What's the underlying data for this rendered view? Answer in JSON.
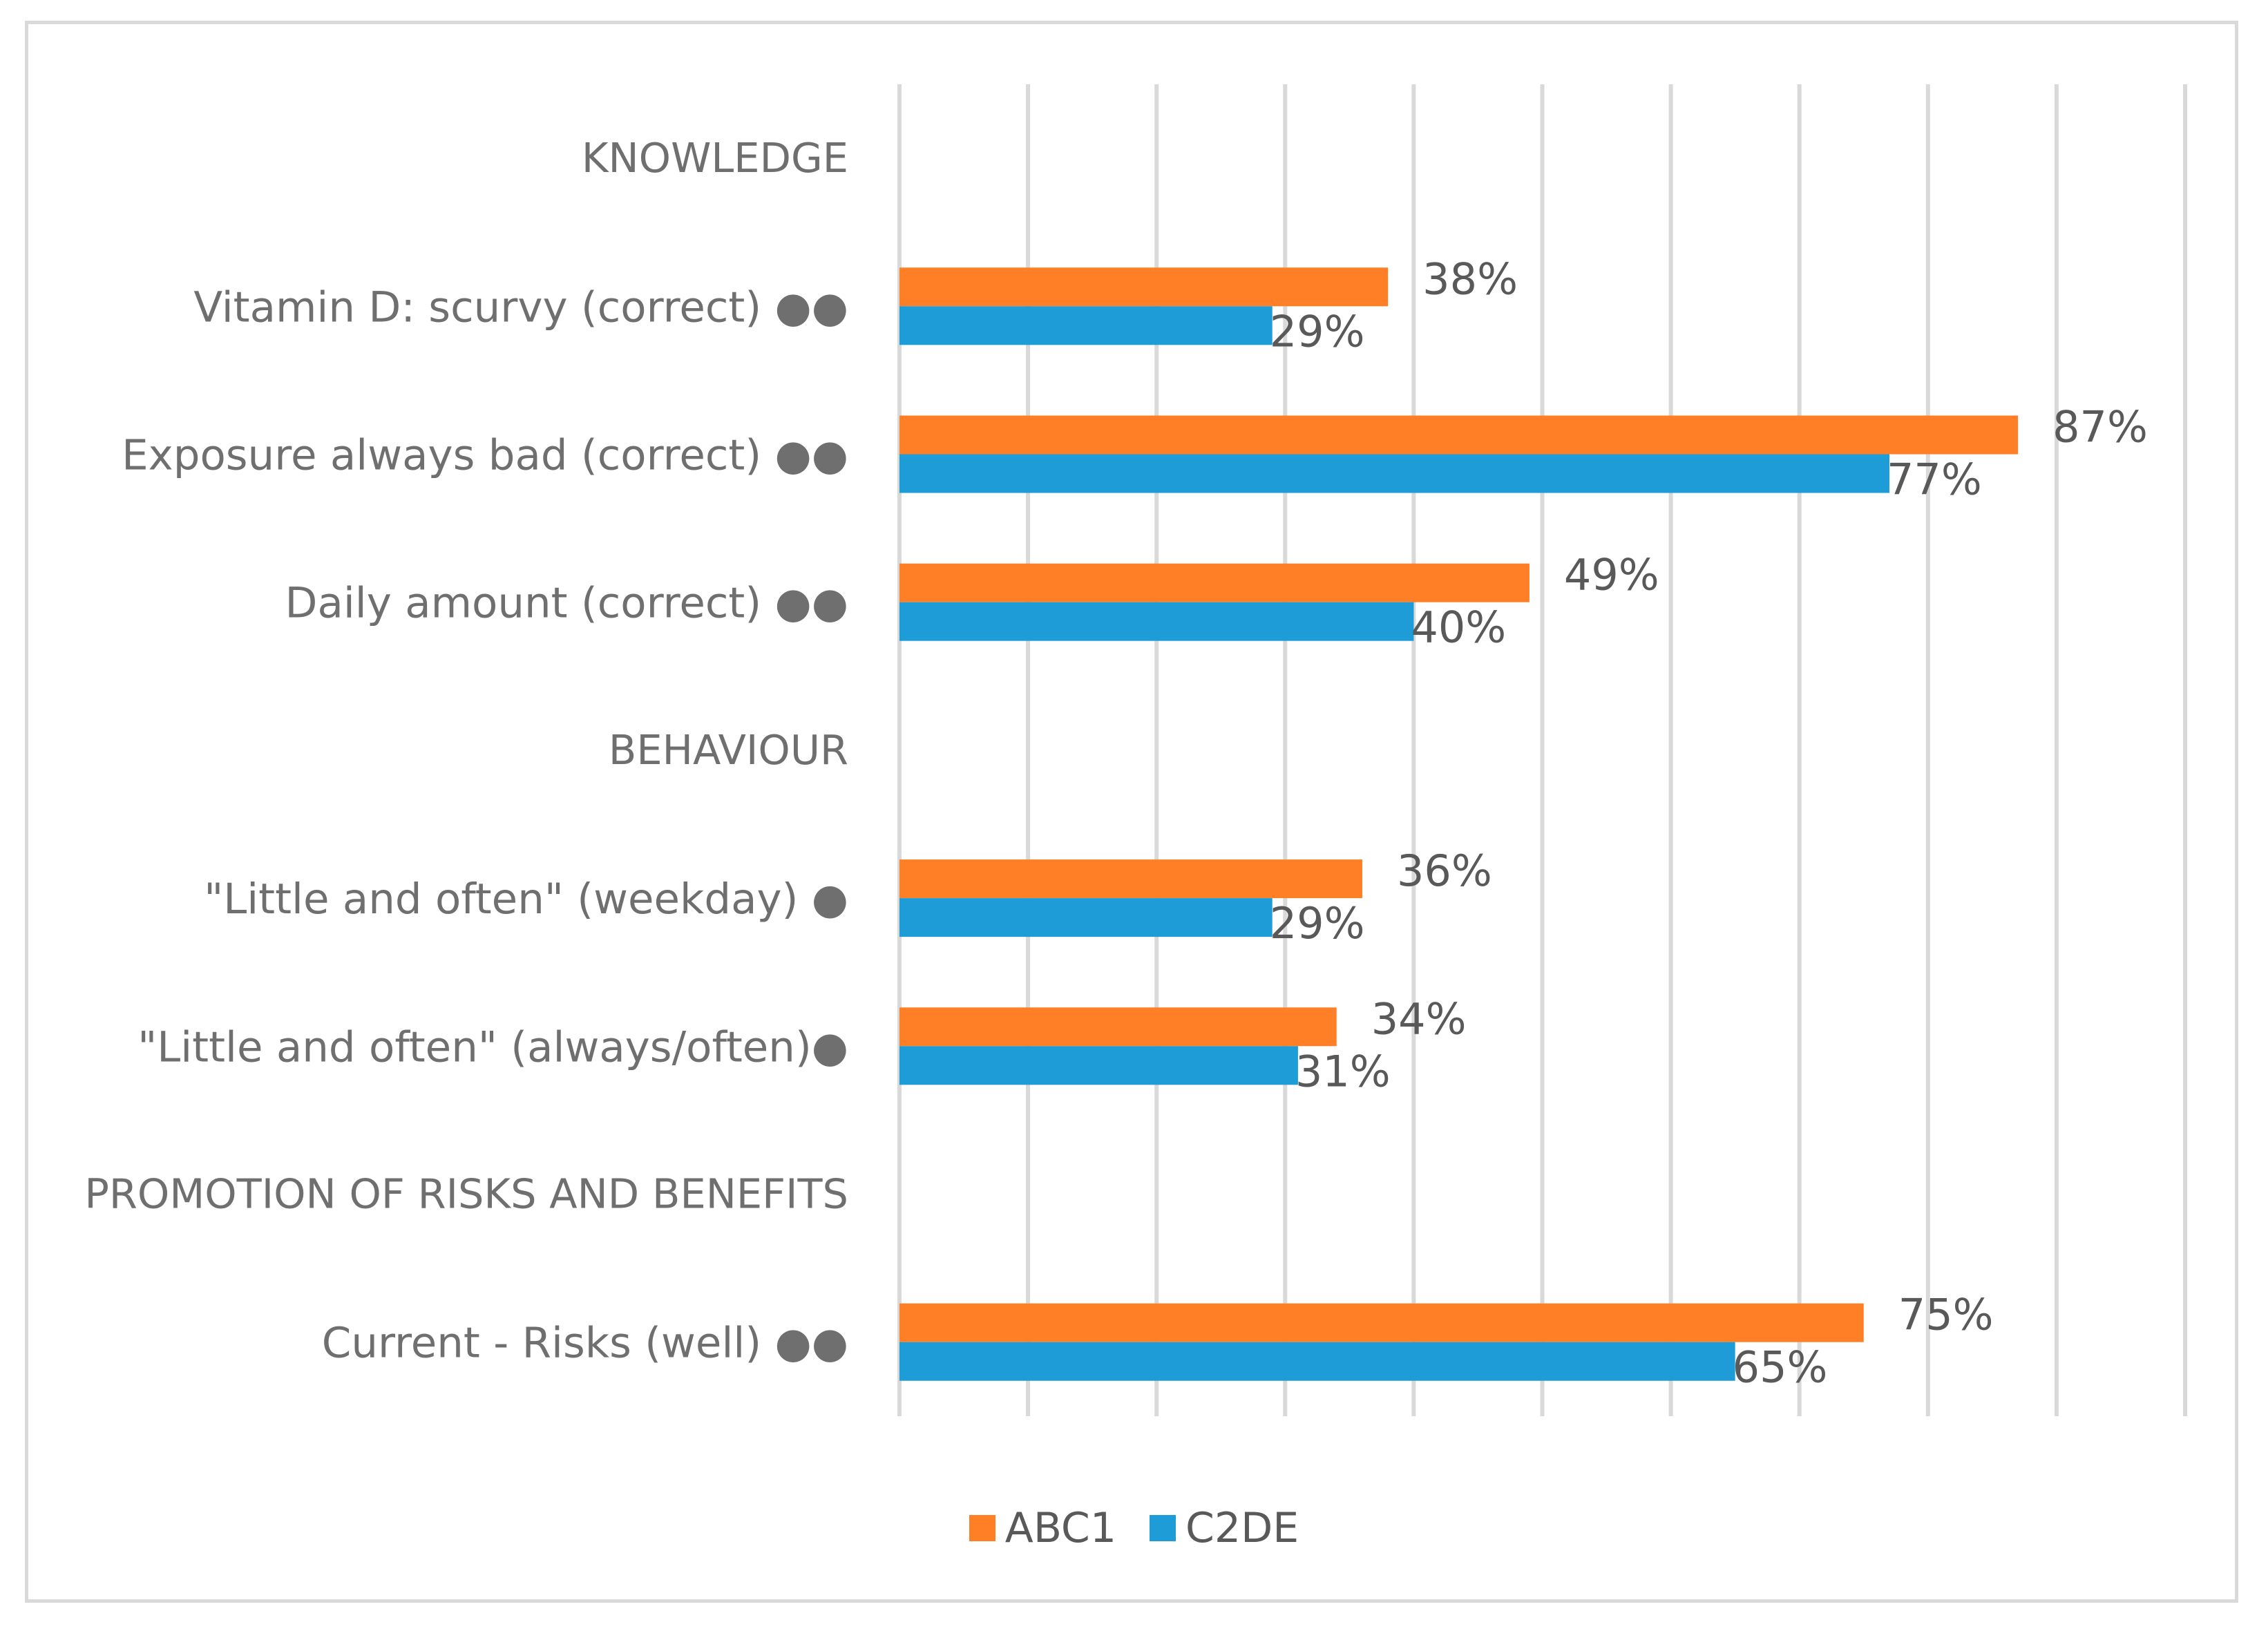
{
  "chart_data": {
    "type": "bar",
    "orientation": "horizontal",
    "title": "",
    "xlabel": "",
    "ylabel": "",
    "xlim": [
      0,
      100
    ],
    "gridlines": true,
    "legend_position": "bottom",
    "rows": [
      {
        "kind": "section",
        "label": "KNOWLEDGE"
      },
      {
        "kind": "category",
        "label": "Vitamin D: scurvy (correct) ●●",
        "values": [
          38,
          29
        ],
        "value_labels": [
          "38%",
          "29%"
        ]
      },
      {
        "kind": "category",
        "label": "Exposure always bad (correct) ●●",
        "values": [
          87,
          77
        ],
        "value_labels": [
          "87%",
          "77%"
        ]
      },
      {
        "kind": "category",
        "label": "Daily amount (correct) ●●",
        "values": [
          49,
          40
        ],
        "value_labels": [
          "49%",
          "40%"
        ]
      },
      {
        "kind": "section",
        "label": "BEHAVIOUR"
      },
      {
        "kind": "category",
        "label": "\"Little and often\" (weekday) ●",
        "values": [
          36,
          29
        ],
        "value_labels": [
          "36%",
          "29%"
        ]
      },
      {
        "kind": "category",
        "label": "\"Little and often\" (always/often)●",
        "values": [
          34,
          31
        ],
        "value_labels": [
          "34%",
          "31%"
        ]
      },
      {
        "kind": "section",
        "label": "PROMOTION OF RISKS AND BENEFITS"
      },
      {
        "kind": "category",
        "label": "Current - Risks (well) ●●",
        "values": [
          75,
          65
        ],
        "value_labels": [
          "75%",
          "65%"
        ]
      }
    ],
    "series": [
      {
        "name": "ABC1",
        "color": "#FF7F27"
      },
      {
        "name": "C2DE",
        "color": "#1E9CD7"
      }
    ]
  },
  "legend": {
    "items": [
      {
        "label": "ABC1",
        "color": "#FF7F27"
      },
      {
        "label": "C2DE",
        "color": "#1E9CD7"
      }
    ]
  }
}
